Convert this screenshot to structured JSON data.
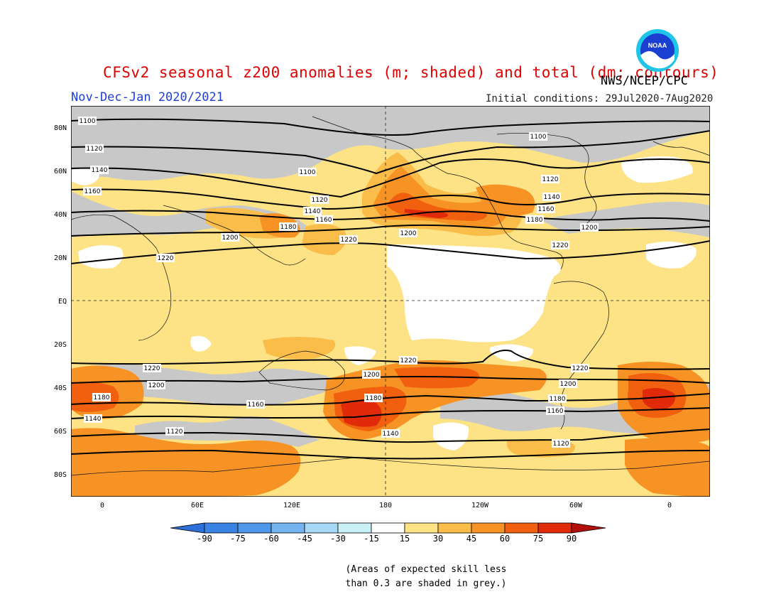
{
  "title": "CFSv2 seasonal z200 anomalies (m; shaded) and total (dm; contours)",
  "agency": "NWS/NCEP/CPC",
  "logo_text": "NOAA",
  "period": "Nov-Dec-Jan 2020/2021",
  "initial_conditions": "Initial conditions: 29Jul2020-7Aug2020",
  "lat_labels": [
    "80N",
    "60N",
    "40N",
    "20N",
    "EQ",
    "20S",
    "40S",
    "60S",
    "80S"
  ],
  "lon_labels": [
    "0",
    "60E",
    "120E",
    "180",
    "120W",
    "60W",
    "0"
  ],
  "colorbar": {
    "labels": [
      "-90",
      "-75",
      "-60",
      "-45",
      "-30",
      "-15",
      "15",
      "30",
      "45",
      "60",
      "75",
      "90"
    ],
    "colors": [
      "#2f6fd8",
      "#3a82e4",
      "#4f97ea",
      "#73b4f1",
      "#a6d8f5",
      "#c9f0f5",
      "#ffffff",
      "#fde385",
      "#fbbd4a",
      "#f79324",
      "#f0600f",
      "#e02a0a",
      "#b30f0b"
    ]
  },
  "contour_labels": [
    "1100",
    "1120",
    "1140",
    "1160",
    "1180",
    "1200",
    "1220"
  ],
  "grey_note": "(Areas of expected skill less\nthan 0.3 are shaded in grey.)",
  "colors": {
    "title": "#e00000",
    "period": "#1f3fd6",
    "grey_skill": "#c8c8c8",
    "base_anomaly": "#fde385"
  }
}
